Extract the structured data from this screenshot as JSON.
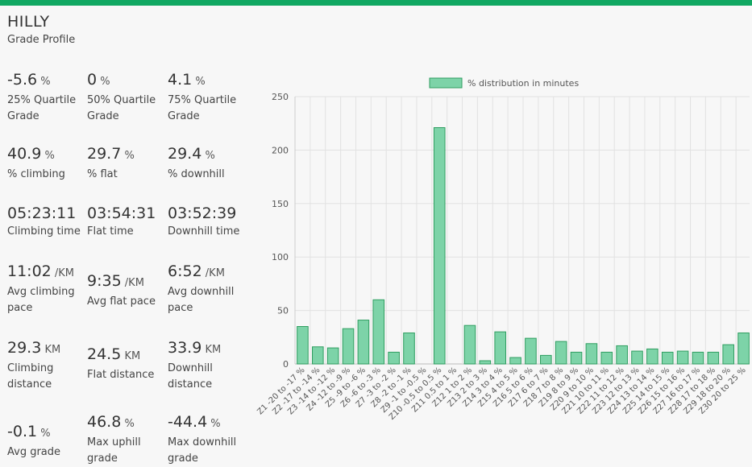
{
  "header": {
    "title": "HILLY",
    "subtitle": "Grade Profile"
  },
  "stats": [
    {
      "value": "-5.6",
      "unit": "%",
      "label": "25% Quartile Grade"
    },
    {
      "value": "0",
      "unit": "%",
      "label": "50% Quartile Grade"
    },
    {
      "value": "4.1",
      "unit": "%",
      "label": "75% Quartile Grade"
    },
    {
      "value": "40.9",
      "unit": "%",
      "label": "% climbing"
    },
    {
      "value": "29.7",
      "unit": "%",
      "label": "% flat"
    },
    {
      "value": "29.4",
      "unit": "%",
      "label": "% downhill"
    },
    {
      "value": "05:23:11",
      "unit": "",
      "label": "Climbing time"
    },
    {
      "value": "03:54:31",
      "unit": "",
      "label": "Flat time"
    },
    {
      "value": "03:52:39",
      "unit": "",
      "label": "Downhill time"
    },
    {
      "value": "11:02",
      "unit": "/KM",
      "label": "Avg climbing pace"
    },
    {
      "value": "9:35",
      "unit": "/KM",
      "label": "Avg flat pace"
    },
    {
      "value": "6:52",
      "unit": "/KM",
      "label": "Avg downhill pace"
    },
    {
      "value": "29.3",
      "unit": "KM",
      "label": "Climbing distance"
    },
    {
      "value": "24.5",
      "unit": "KM",
      "label": "Flat distance"
    },
    {
      "value": "33.9",
      "unit": "KM",
      "label": "Downhill distance"
    },
    {
      "value": "-0.1",
      "unit": "%",
      "label": "Avg grade"
    },
    {
      "value": "46.8",
      "unit": "%",
      "label": "Max uphill grade"
    },
    {
      "value": "-44.4",
      "unit": "%",
      "label": "Max downhill grade"
    }
  ],
  "chart_data": {
    "type": "bar",
    "categories": [
      "Z1 -20 to -17 %",
      "Z2 -17 to -14 %",
      "Z3 -14 to -12 %",
      "Z4 -12 to -9 %",
      "Z5 -9 to -6 %",
      "Z6 -6 to -3 %",
      "Z7 -3 to -2 %",
      "Z8 -2 to -1 %",
      "Z9 -1 to -0.5 %",
      "Z10 -0.5 to 0.5 %",
      "Z11 0.5 to 1 %",
      "Z12 1 to 2 %",
      "Z13 2 to 3 %",
      "Z14 3 to 4 %",
      "Z15 4 to 5 %",
      "Z16 5 to 6 %",
      "Z17 6 to 7 %",
      "Z18 7 to 8 %",
      "Z19 8 to 9 %",
      "Z20 9 to 10 %",
      "Z21 10 to 11 %",
      "Z22 11 to 12 %",
      "Z23 12 to 13 %",
      "Z24 13 to 14 %",
      "Z25 14 to 15 %",
      "Z26 15 to 16 %",
      "Z27 16 to 17 %",
      "Z28 17 to 18 %",
      "Z29 18 to 20 %",
      "Z30 20 to 25 %"
    ],
    "series": [
      {
        "name": "% distribution in minutes",
        "values": [
          35,
          16,
          15,
          33,
          41,
          60,
          11,
          29,
          0,
          221,
          0,
          36,
          3,
          30,
          6,
          24,
          8,
          21,
          11,
          19,
          11,
          17,
          12,
          14,
          11,
          12,
          11,
          11,
          18,
          29
        ]
      }
    ],
    "ylim": [
      0,
      250
    ],
    "yticks": [
      0,
      50,
      100,
      150,
      200,
      250
    ],
    "grid": true,
    "legend_position": "top",
    "colors": {
      "fill": "#7dd3a8",
      "stroke": "#2f9e60",
      "grid": "#e2e2e2",
      "accent": "#11a862"
    }
  }
}
